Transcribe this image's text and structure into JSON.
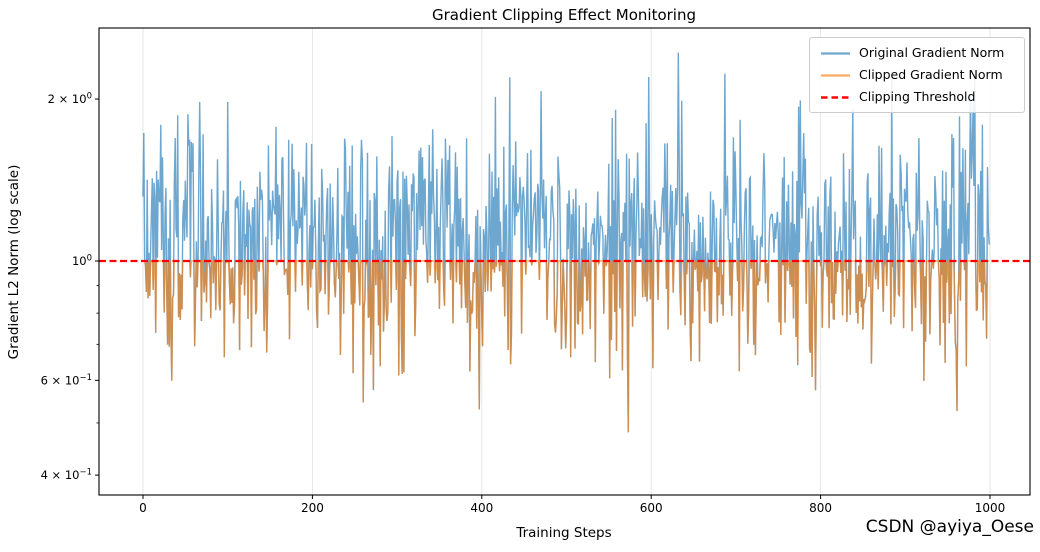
{
  "chart_data": {
    "type": "line",
    "title": "Gradient Clipping Effect Monitoring",
    "xlabel": "Training Steps",
    "ylabel": "Gradient L2 Norm (log scale)",
    "y_scale": "log",
    "grid": "vertical-only",
    "x_ticks": [
      0,
      200,
      400,
      600,
      800,
      1000
    ],
    "y_ticks": [
      {
        "value": 2.0,
        "label": "2 × 10",
        "exp": "0"
      },
      {
        "value": 1.0,
        "label": "10",
        "exp": "0"
      },
      {
        "value": 0.6,
        "label": "6 × 10",
        "exp": "−1"
      },
      {
        "value": 0.4,
        "label": "4 × 10",
        "exp": "−1"
      }
    ],
    "y_minor_ticks": [
      0.5,
      0.7,
      0.8,
      0.9
    ],
    "xlim": [
      -52,
      1047
    ],
    "ylim": [
      0.37,
      2.71
    ],
    "n_points": 1000,
    "x_range": [
      0,
      999
    ],
    "threshold": 1.0,
    "observed": {
      "max": 2.44,
      "min": 0.41,
      "typical": 1.1
    },
    "series": [
      {
        "name": "Original Gradient Norm",
        "color": "#1f77b4",
        "alpha": 0.65,
        "legend_color": "#6da7ce"
      },
      {
        "name": "Clipped Gradient Norm",
        "color": "#ff7f0e",
        "alpha": 0.65,
        "legend_color": "#ffac62",
        "rule": "min(original, threshold)"
      },
      {
        "name": "Clipping Threshold",
        "color": "#ff0000",
        "style": "dashed",
        "value": 1.0,
        "legend_color": "#ff0000"
      }
    ],
    "legend_position": "upper right",
    "grid_color": "#e4e4e4",
    "generator": {
      "seed": 1337,
      "ln_mean_start": 0.1,
      "ln_mean_end": 0.05,
      "ln_sd": 0.26,
      "clamp_min": 0.41,
      "clamp_max": 2.44
    }
  },
  "watermark": {
    "text": "CSDN @ayiya_Oese",
    "color": "#b9b9b9"
  }
}
